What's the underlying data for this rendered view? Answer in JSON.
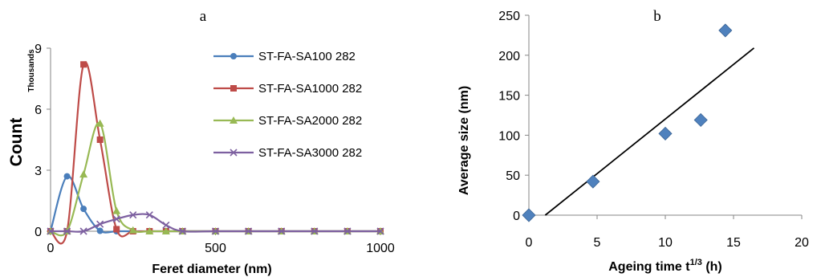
{
  "chart_data": [
    {
      "type": "line",
      "panel_label": "a",
      "xlabel": "Feret diameter (nm)",
      "ylabel": "Count",
      "yunit": "Thousands",
      "xlim": [
        0,
        1000
      ],
      "ylim": [
        0,
        9
      ],
      "xticks": [
        0,
        500,
        1000
      ],
      "yticks": [
        0,
        3,
        6,
        9
      ],
      "legend_position": "right",
      "grid": false,
      "x": [
        0,
        50,
        100,
        150,
        200,
        250,
        300,
        350,
        400,
        500,
        600,
        700,
        800,
        900,
        1000
      ],
      "series": [
        {
          "name": "ST-FA-SA100 282",
          "color": "#4A7EBB",
          "marker": "circle",
          "values": [
            0,
            2.7,
            1.1,
            0.02,
            0,
            0,
            0,
            0,
            0,
            0,
            0,
            0,
            0,
            0,
            0
          ]
        },
        {
          "name": "ST-FA-SA1000 282",
          "color": "#BE4B48",
          "marker": "square",
          "values": [
            0,
            0,
            8.2,
            4.5,
            0.1,
            0,
            0,
            0,
            0,
            0,
            0,
            0,
            0,
            0,
            0
          ]
        },
        {
          "name": "ST-FA-SA2000 282",
          "color": "#98B954",
          "marker": "triangle",
          "values": [
            0,
            0,
            2.8,
            5.3,
            1.0,
            0.05,
            0,
            0,
            0,
            0,
            0,
            0,
            0,
            0,
            0
          ]
        },
        {
          "name": "ST-FA-SA3000 282",
          "color": "#7D60A0",
          "marker": "x",
          "values": [
            0,
            0,
            0,
            0.35,
            0.6,
            0.8,
            0.8,
            0.3,
            0,
            0,
            0,
            0,
            0,
            0,
            0
          ]
        }
      ]
    },
    {
      "type": "scatter",
      "panel_label": "b",
      "xlabel": "Ageing time t",
      "xlabel_sup": "1/3",
      "xlabel_unit": " (h)",
      "ylabel": "Average size (nm)",
      "xlim": [
        0,
        20
      ],
      "ylim": [
        0,
        250
      ],
      "xticks": [
        0,
        5,
        10,
        15,
        20
      ],
      "yticks": [
        0,
        50,
        100,
        150,
        200,
        250
      ],
      "grid": false,
      "marker_color": "#4F81BD",
      "points": [
        {
          "x": 0,
          "y": 0
        },
        {
          "x": 4.7,
          "y": 42
        },
        {
          "x": 10,
          "y": 102
        },
        {
          "x": 12.6,
          "y": 119
        },
        {
          "x": 14.4,
          "y": 231
        }
      ],
      "trendline": {
        "x": [
          1.2,
          16.5
        ],
        "y": [
          0,
          209
        ]
      }
    }
  ]
}
